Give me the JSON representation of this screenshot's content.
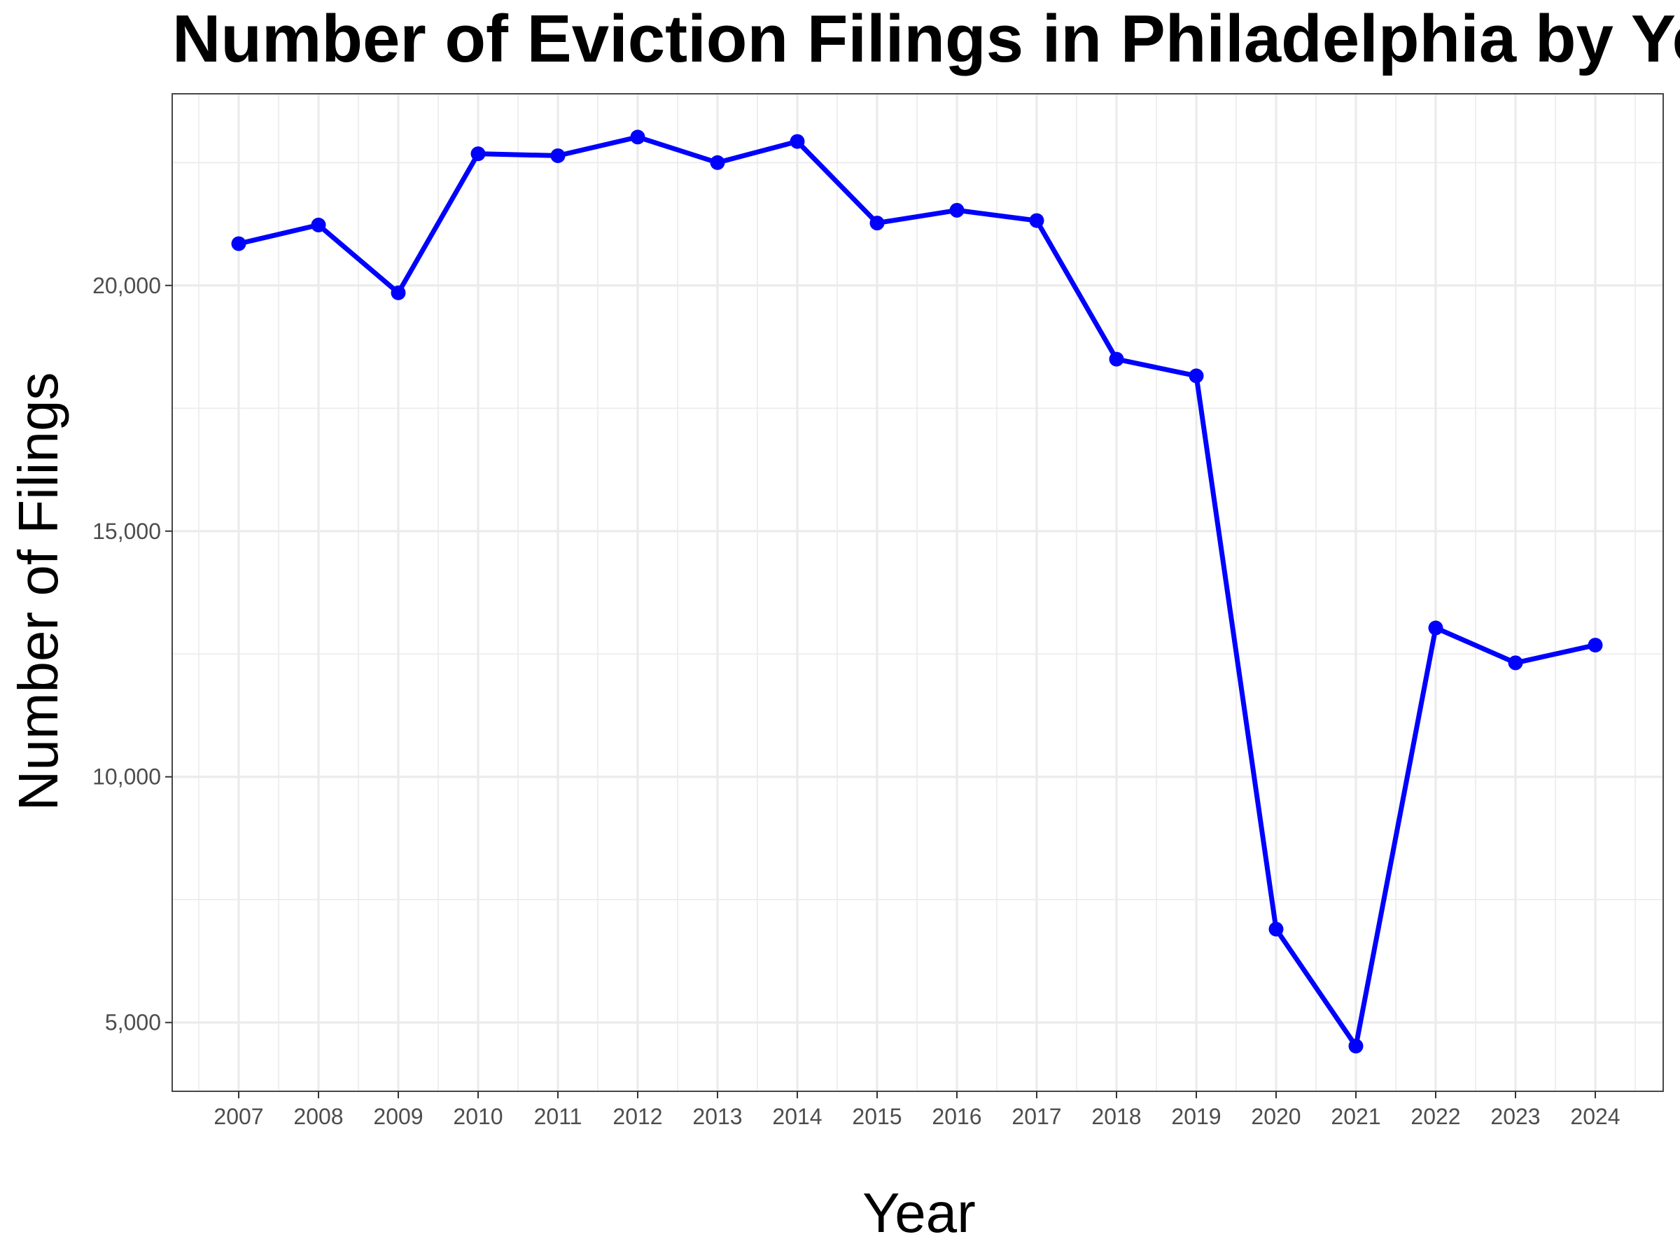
{
  "chart_data": {
    "type": "line",
    "title": "Number of Eviction Filings in Philadelphia by Year",
    "xlabel": "Year",
    "ylabel": "Number of Filings",
    "x": [
      "2007",
      "2008",
      "2009",
      "2010",
      "2011",
      "2012",
      "2013",
      "2014",
      "2015",
      "2016",
      "2017",
      "2018",
      "2019",
      "2020",
      "2021",
      "2022",
      "2023",
      "2024"
    ],
    "series": [
      {
        "values": [
          20850,
          21230,
          19850,
          22680,
          22640,
          23020,
          22500,
          22930,
          21270,
          21530,
          21320,
          18500,
          18160,
          6900,
          4520,
          13030,
          12320,
          12680
        ]
      }
    ],
    "ylim": [
      3600,
      23900
    ],
    "yticks": [
      5000,
      10000,
      15000,
      20000
    ],
    "ytick_labels": [
      "5,000",
      "10,000",
      "15,000",
      "20,000"
    ],
    "grid": true,
    "legend": "none",
    "colors": {
      "line": "#0000ff",
      "grid": "#ebebeb",
      "panel_border": "#333333",
      "tick_text": "#4d4d4d"
    }
  }
}
